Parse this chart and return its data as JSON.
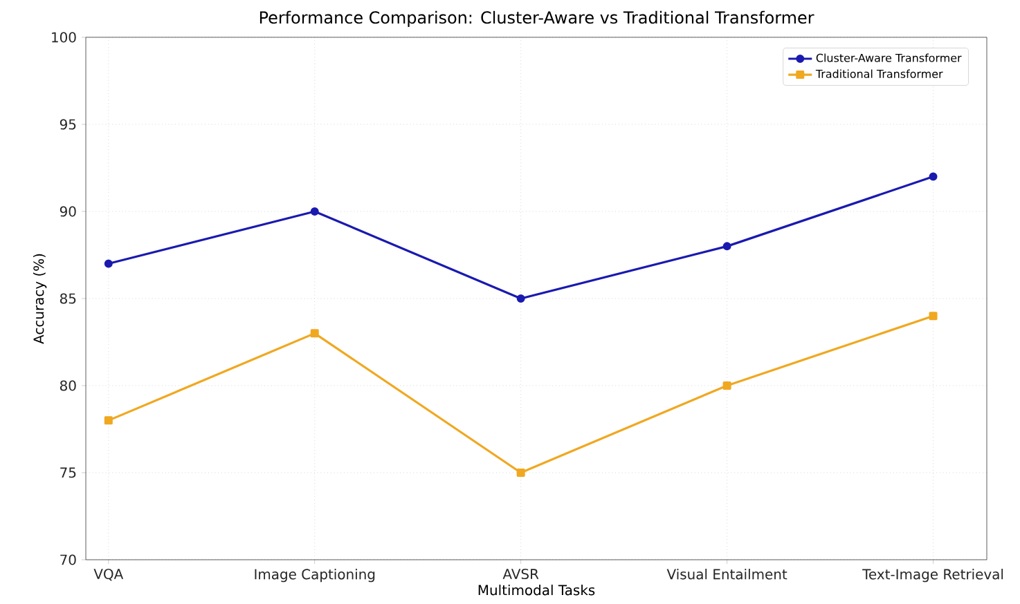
{
  "chart_data": {
    "type": "line",
    "title": "Performance Comparison: Cluster-Aware vs Traditional Transformer",
    "xlabel": "Multimodal Tasks",
    "ylabel": "Accuracy (%)",
    "categories": [
      "VQA",
      "Image Captioning",
      "AVSR",
      "Visual Entailment",
      "Text-Image Retrieval"
    ],
    "series": [
      {
        "name": "Cluster-Aware Transformer",
        "color": "#1a1ab0",
        "marker": "circle",
        "values": [
          87,
          90,
          85,
          88,
          92
        ]
      },
      {
        "name": "Traditional Transformer",
        "color": "#f0a820",
        "marker": "square",
        "values": [
          78,
          83,
          75,
          80,
          84
        ]
      }
    ],
    "ylim": [
      70,
      100
    ],
    "yticks": [
      70,
      75,
      80,
      85,
      90,
      95,
      100
    ],
    "grid": true,
    "line_style": "solid",
    "legend": "top right"
  }
}
